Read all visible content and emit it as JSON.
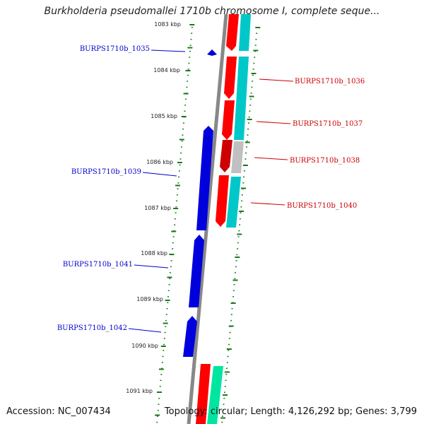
{
  "title": "Burkholderia pseudomallei 1710b chromosome I, complete seque...",
  "accession": "Accession: NC_007434",
  "summary": "Topology: circular; Length: 4,126,292 bp; Genes: 3,799",
  "colors": {
    "backbone": "#888888",
    "tick": "#1a7a1a",
    "reverse_gene": "#0000dd",
    "forward_gene": "#ff0000",
    "forward_alt": "#cc0000",
    "cds_cyan": "#00c8c8",
    "cds_grey": "#c0c0c0",
    "cds_green": "#00e6a0"
  },
  "kbp_labels": [
    {
      "label": "1083 kbp"
    },
    {
      "label": "1084 kbp"
    },
    {
      "label": "1085 kbp"
    },
    {
      "label": "1086 kbp"
    },
    {
      "label": "1087 kbp"
    },
    {
      "label": "1088 kbp"
    },
    {
      "label": "1089 kbp"
    },
    {
      "label": "1090 kbp"
    },
    {
      "label": "1091 kbp"
    }
  ],
  "reverse_genes": [
    {
      "label": "BURPS1710b_1035"
    },
    {
      "label": "BURPS1710b_1039"
    },
    {
      "label": "BURPS1710b_1041"
    },
    {
      "label": "BURPS1710b_1042"
    }
  ],
  "forward_genes": [
    {
      "label": "BURPS1710b_1036"
    },
    {
      "label": "BURPS1710b_1037"
    },
    {
      "label": "BURPS1710b_1038"
    },
    {
      "label": "BURPS1710b_1040"
    }
  ]
}
